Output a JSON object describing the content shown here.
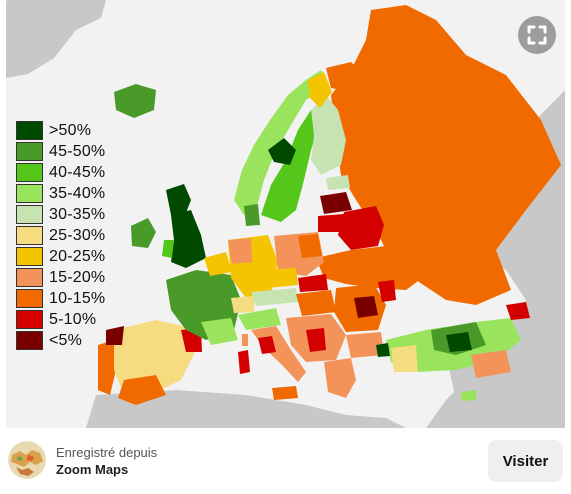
{
  "legend": {
    "items": [
      {
        "label": ">50%",
        "color": "#004a00"
      },
      {
        "label": "45-50%",
        "color": "#4a9a2a"
      },
      {
        "label": "40-45%",
        "color": "#55c71a"
      },
      {
        "label": "35-40%",
        "color": "#99e45c"
      },
      {
        "label": "30-35%",
        "color": "#c7e3b2"
      },
      {
        "label": "25-30%",
        "color": "#f5dc80"
      },
      {
        "label": "20-25%",
        "color": "#f5c400"
      },
      {
        "label": "15-20%",
        "color": "#f3935a"
      },
      {
        "label": "10-15%",
        "color": "#f06a00"
      },
      {
        "label": "5-10%",
        "color": "#d40000"
      },
      {
        "label": "<5%",
        "color": "#7a0000"
      }
    ]
  },
  "map": {
    "sea_color": "#f2f2f2",
    "nodata_color": "#c8c8c8",
    "border_color": "#ffffff"
  },
  "zoom": {
    "icon": "expand-icon"
  },
  "footer": {
    "saved_from": "Enregistré depuis",
    "source": "Zoom Maps",
    "visit_label": "Visiter"
  }
}
